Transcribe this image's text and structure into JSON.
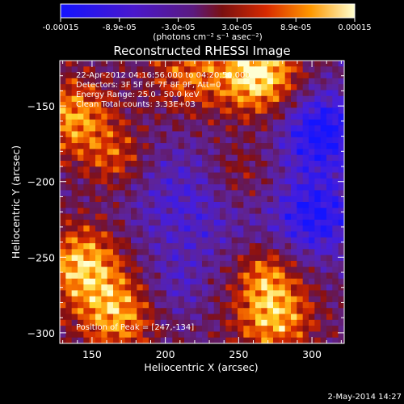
{
  "colorbar": {
    "tick_labels": [
      "-0.00015",
      "-8.9e-05",
      "-3.0e-05",
      "3.0e-05",
      "8.9e-05",
      "0.00015"
    ],
    "unit_label": "(photons cm⁻² s⁻¹ asec⁻²)",
    "min": -0.00015,
    "max": 0.00015
  },
  "chart_data": {
    "type": "heatmap",
    "title": "Reconstructed RHESSI Image",
    "xlabel": "Heliocentric X (arcsec)",
    "ylabel": "Heliocentric Y (arcsec)",
    "xlim": [
      128,
      322
    ],
    "ylim": [
      -307,
      -120
    ],
    "x_ticks": [
      150,
      200,
      250,
      300
    ],
    "y_ticks": [
      -150,
      -200,
      -250,
      -300
    ],
    "info_lines": [
      "22-Apr-2012 04:16:56.000 to 04:20:50.000",
      "Detectors: 3F 5F 6F 7F 8F 9F, Att=0",
      "Energy Range: 25.0 - 50.0 keV",
      "Clean     Total counts: 3.33E+03"
    ],
    "peak_label": "Position of Peak = [247,-134]",
    "peak": [
      247,
      -134
    ],
    "grid": false
  },
  "footer": {
    "date": "2-May-2014 14:27"
  }
}
